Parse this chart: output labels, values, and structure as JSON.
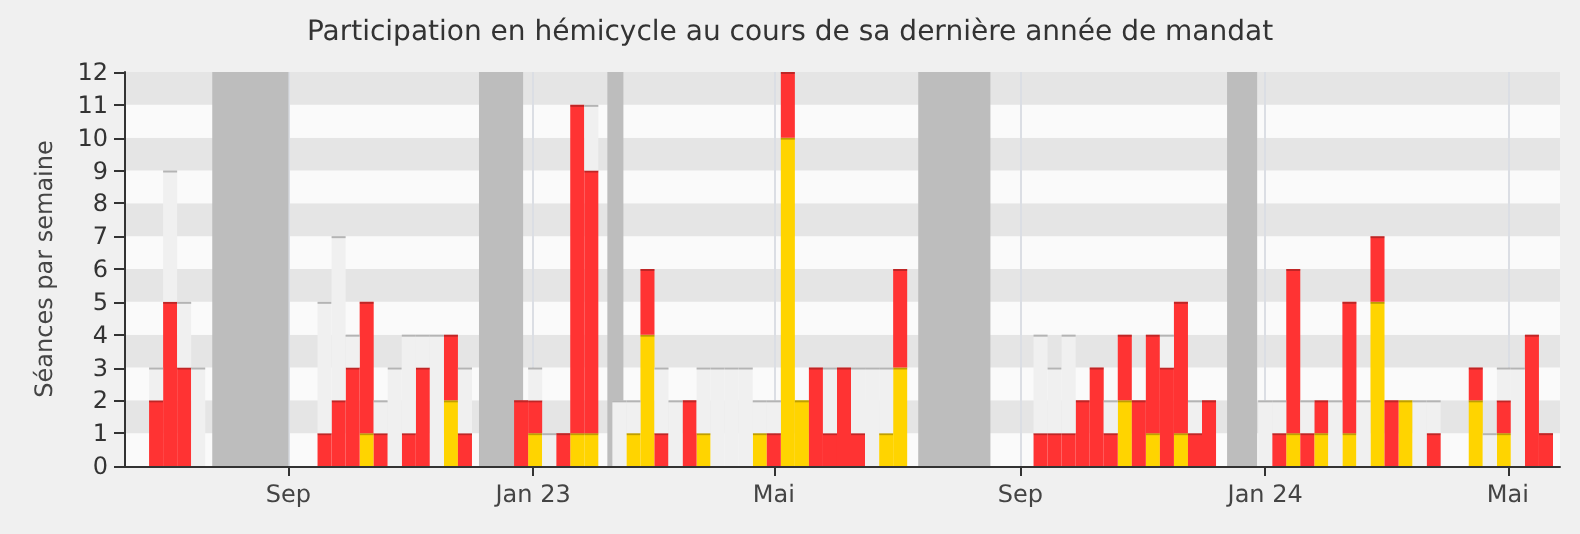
{
  "chart_data": {
    "type": "bar",
    "title": "Participation en hémicycle au cours de sa dernière année de mandat",
    "ylabel": "Séances par semaine",
    "stacked": true,
    "grid": true,
    "x": [
      "2022-06-27",
      "2022-07-04",
      "2022-07-11",
      "2022-07-18",
      "2022-09-19",
      "2022-09-26",
      "2022-10-03",
      "2022-10-10",
      "2022-10-17",
      "2022-10-24",
      "2022-10-31",
      "2022-11-07",
      "2022-11-14",
      "2022-11-21",
      "2022-11-28",
      "2022-12-26",
      "2023-01-02",
      "2023-01-09",
      "2023-01-16",
      "2023-01-23",
      "2023-01-30",
      "2023-02-13",
      "2023-02-20",
      "2023-02-27",
      "2023-03-06",
      "2023-03-13",
      "2023-03-20",
      "2023-03-27",
      "2023-04-03",
      "2023-04-10",
      "2023-04-17",
      "2023-04-24",
      "2023-05-01",
      "2023-05-08",
      "2023-05-15",
      "2023-05-22",
      "2023-05-29",
      "2023-06-05",
      "2023-06-12",
      "2023-06-19",
      "2023-06-26",
      "2023-07-03",
      "2023-09-11",
      "2023-09-18",
      "2023-09-25",
      "2023-10-02",
      "2023-10-09",
      "2023-10-16",
      "2023-10-23",
      "2023-10-30",
      "2023-11-06",
      "2023-11-13",
      "2023-11-20",
      "2023-11-27",
      "2023-12-04",
      "2024-01-01",
      "2024-01-08",
      "2024-01-15",
      "2024-01-22",
      "2024-01-29",
      "2024-02-05",
      "2024-02-12",
      "2024-02-19",
      "2024-02-26",
      "2024-03-04",
      "2024-03-11",
      "2024-03-18",
      "2024-03-25",
      "2024-04-15",
      "2024-04-22",
      "2024-04-29",
      "2024-05-06",
      "2024-05-13",
      "2024-05-20"
    ],
    "series": [
      {
        "color": "#ffd400",
        "values": [
          0,
          0,
          0,
          0,
          0,
          0,
          0,
          1,
          0,
          0,
          0,
          0,
          0,
          2,
          0,
          0,
          1,
          0,
          0,
          1,
          1,
          0,
          1,
          4,
          0,
          0,
          0,
          1,
          0,
          0,
          0,
          1,
          0,
          10,
          2,
          0,
          0,
          0,
          0,
          0,
          1,
          3,
          0,
          0,
          0,
          0,
          0,
          0,
          2,
          0,
          1,
          0,
          1,
          0,
          0,
          0,
          0,
          1,
          0,
          1,
          0,
          1,
          0,
          5,
          0,
          2,
          0,
          0,
          2,
          0,
          1,
          0,
          0,
          0
        ]
      },
      {
        "color": "#ff3333",
        "values": [
          2,
          5,
          3,
          0,
          1,
          2,
          3,
          4,
          1,
          0,
          1,
          3,
          0,
          2,
          1,
          2,
          1,
          0,
          1,
          10,
          8,
          0,
          0,
          2,
          1,
          0,
          2,
          0,
          0,
          0,
          0,
          0,
          1,
          2,
          0,
          3,
          1,
          3,
          1,
          0,
          0,
          3,
          1,
          1,
          1,
          2,
          3,
          1,
          2,
          2,
          3,
          3,
          4,
          1,
          2,
          0,
          1,
          5,
          1,
          1,
          0,
          4,
          0,
          2,
          2,
          0,
          0,
          1,
          1,
          0,
          1,
          0,
          4,
          1
        ]
      },
      {
        "color": "#f0f0f0",
        "values": [
          1,
          4,
          2,
          3,
          4,
          5,
          1,
          0,
          1,
          3,
          3,
          1,
          4,
          0,
          2,
          0,
          1,
          1,
          0,
          0,
          2,
          2,
          1,
          0,
          2,
          2,
          0,
          2,
          3,
          3,
          3,
          1,
          1,
          0,
          0,
          0,
          2,
          0,
          2,
          3,
          2,
          0,
          3,
          2,
          3,
          0,
          0,
          1,
          0,
          0,
          0,
          1,
          0,
          1,
          0,
          2,
          1,
          0,
          1,
          0,
          2,
          0,
          2,
          0,
          0,
          0,
          2,
          1,
          0,
          1,
          1,
          3,
          0,
          0
        ]
      }
    ],
    "bands": [
      {
        "axis": "x",
        "from": "2022-07-25",
        "to": "2022-09-01",
        "color": "#bdbdbd"
      },
      {
        "axis": "x",
        "from": "2022-12-05",
        "to": "2022-12-27",
        "color": "#bdbdbd"
      },
      {
        "axis": "x",
        "from": "2023-02-07",
        "to": "2023-02-15",
        "color": "#bdbdbd"
      },
      {
        "axis": "x",
        "from": "2023-07-12",
        "to": "2023-08-17",
        "color": "#bdbdbd"
      },
      {
        "axis": "x",
        "from": "2023-12-13",
        "to": "2023-12-28",
        "color": "#bdbdbd"
      }
    ],
    "xlim": [
      "2022-06-11",
      "2024-05-27"
    ],
    "xticks": [
      {
        "value": "2022-09-01",
        "label": "Sep"
      },
      {
        "value": "2023-01-01",
        "label": "Jan 23"
      },
      {
        "value": "2023-05-01",
        "label": "Mai"
      },
      {
        "value": "2023-09-01",
        "label": "Sep"
      },
      {
        "value": "2024-01-01",
        "label": "Jan 24"
      },
      {
        "value": "2024-05-01",
        "label": "Mai"
      }
    ],
    "ylim": [
      0,
      12
    ],
    "yticks": [
      0,
      1,
      2,
      3,
      4,
      5,
      6,
      7,
      8,
      9,
      10,
      11,
      12
    ]
  }
}
